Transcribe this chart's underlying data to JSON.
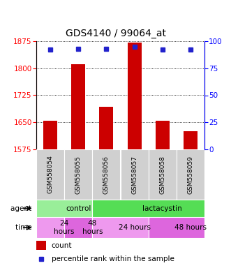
{
  "title": "GDS4140 / 99064_at",
  "samples": [
    "GSM558054",
    "GSM558055",
    "GSM558056",
    "GSM558057",
    "GSM558058",
    "GSM558059"
  ],
  "counts": [
    1655,
    1812,
    1693,
    1872,
    1655,
    1625
  ],
  "percentile_ranks": [
    92,
    93,
    93,
    95,
    92,
    92
  ],
  "ylim_left": [
    1575,
    1875
  ],
  "ylim_right": [
    0,
    100
  ],
  "yticks_left": [
    1575,
    1650,
    1725,
    1800,
    1875
  ],
  "yticks_right": [
    0,
    25,
    50,
    75,
    100
  ],
  "bar_color": "#cc0000",
  "dot_color": "#2222cc",
  "agent_groups": [
    {
      "label": "control",
      "start": 0,
      "end": 2,
      "color": "#99ee99"
    },
    {
      "label": "lactacystin",
      "start": 2,
      "end": 6,
      "color": "#55dd55"
    }
  ],
  "time_groups": [
    {
      "label": "24\nhours",
      "start": 0,
      "end": 1,
      "color": "#ee99ee"
    },
    {
      "label": "48\nhours",
      "start": 1,
      "end": 2,
      "color": "#dd66dd"
    },
    {
      "label": "24 hours",
      "start": 2,
      "end": 4,
      "color": "#ee99ee"
    },
    {
      "label": "48 hours",
      "start": 4,
      "end": 6,
      "color": "#dd66dd"
    }
  ],
  "title_fontsize": 10,
  "tick_fontsize": 7.5,
  "sample_fontsize": 6.5,
  "annot_fontsize": 7.5,
  "legend_fontsize": 7.5
}
